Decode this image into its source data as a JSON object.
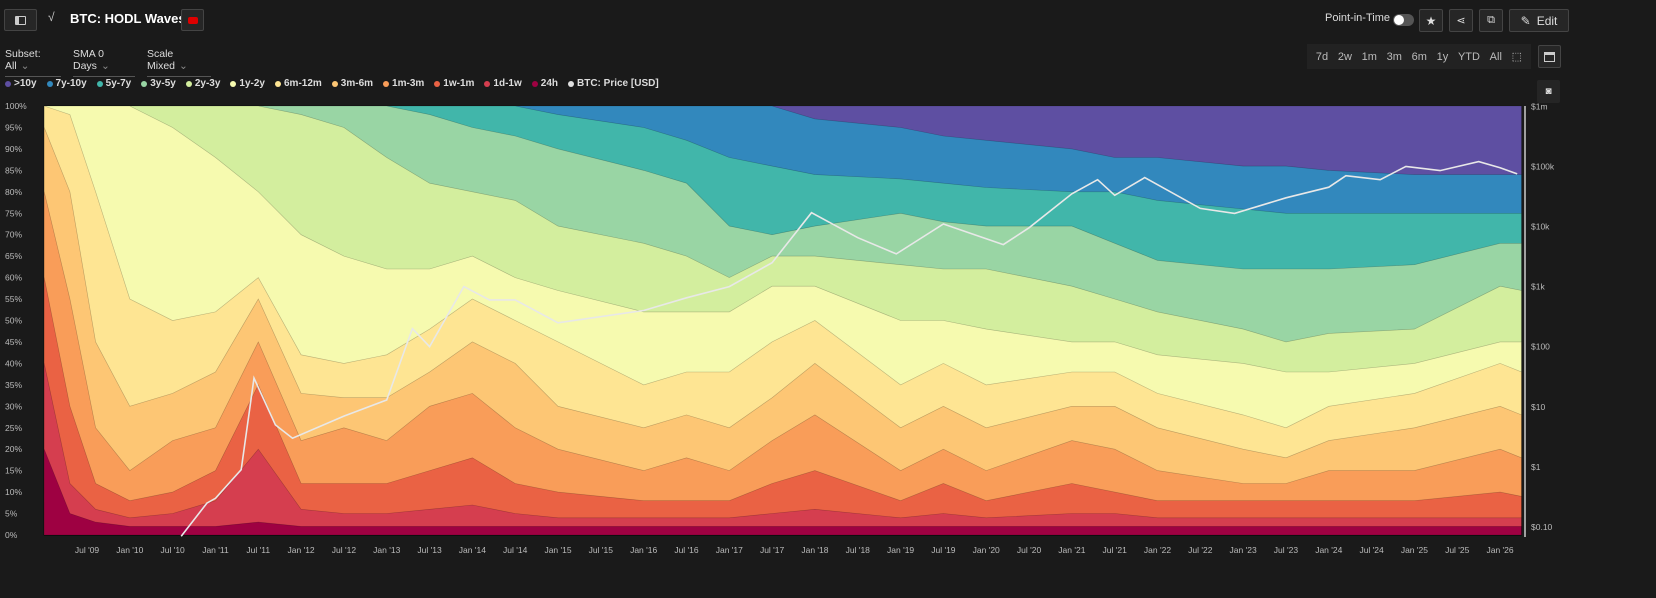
{
  "header": {
    "title": "BTC: HODL Waves",
    "point_in_time": "Point-in-Time",
    "edit": "Edit"
  },
  "controls": {
    "subset": "Subset: All",
    "sma": "SMA 0 Days",
    "scale": "Scale Mixed"
  },
  "ranges": [
    "7d",
    "2w",
    "1m",
    "3m",
    "6m",
    "1y",
    "YTD",
    "All"
  ],
  "chart_data": {
    "type": "area",
    "title": "BTC: HODL Waves",
    "stacked": true,
    "legend": [
      {
        "name": ">10y",
        "color": "#5e4fa2"
      },
      {
        "name": "7y-10y",
        "color": "#3288bd"
      },
      {
        "name": "5y-7y",
        "color": "#41b6aa"
      },
      {
        "name": "3y-5y",
        "color": "#99d5a4"
      },
      {
        "name": "2y-3y",
        "color": "#d3ee9e"
      },
      {
        "name": "1y-2y",
        "color": "#f6faaf"
      },
      {
        "name": "6m-12m",
        "color": "#fee593"
      },
      {
        "name": "3m-6m",
        "color": "#fdc674"
      },
      {
        "name": "1m-3m",
        "color": "#f99d59"
      },
      {
        "name": "1w-1m",
        "color": "#ea6244"
      },
      {
        "name": "1d-1w",
        "color": "#d53e4f"
      },
      {
        "name": "24h",
        "color": "#9e0142"
      },
      {
        "name": "BTC: Price [USD]",
        "color": "#e0e0e0"
      }
    ],
    "band_order_bottom_up": [
      "24h",
      "1d-1w",
      "1w-1m",
      "1m-3m",
      "3m-6m",
      "6m-12m",
      "1y-2y",
      "2y-3y",
      "3y-5y",
      "5y-7y",
      "7y-10y",
      ">10y"
    ],
    "dates": [
      2009.0,
      2009.3,
      2009.6,
      2010.0,
      2010.5,
      2011.0,
      2011.5,
      2012.0,
      2012.5,
      2013.0,
      2013.5,
      2014.0,
      2014.5,
      2015.0,
      2016.0,
      2016.5,
      2017.0,
      2017.5,
      2018.0,
      2019.0,
      2019.5,
      2020.0,
      2021.0,
      2021.5,
      2022.0,
      2023.0,
      2023.5,
      2024.0,
      2025.0,
      2026.0,
      2026.25
    ],
    "cumulative_tops_pct": [
      [
        20,
        40,
        60,
        80,
        95,
        100,
        100,
        100,
        100,
        100,
        100
      ],
      [
        5,
        12,
        30,
        55,
        80,
        98,
        100,
        100,
        100,
        100,
        100
      ],
      [
        3,
        6,
        12,
        25,
        45,
        80,
        100,
        100,
        100,
        100,
        100
      ],
      [
        2,
        4,
        8,
        15,
        30,
        55,
        100,
        100,
        100,
        100,
        100
      ],
      [
        2,
        5,
        10,
        22,
        33,
        50,
        95,
        100,
        100,
        100,
        100
      ],
      [
        2,
        8,
        15,
        25,
        38,
        52,
        88,
        100,
        100,
        100,
        100
      ],
      [
        3,
        20,
        35,
        45,
        55,
        60,
        80,
        100,
        100,
        100,
        100
      ],
      [
        2,
        6,
        12,
        22,
        33,
        42,
        70,
        98,
        100,
        100,
        100
      ],
      [
        2,
        5,
        12,
        25,
        32,
        40,
        65,
        95,
        100,
        100,
        100
      ],
      [
        2,
        5,
        12,
        22,
        32,
        42,
        62,
        88,
        100,
        100,
        100
      ],
      [
        2,
        6,
        15,
        30,
        38,
        48,
        62,
        82,
        98,
        100,
        100
      ],
      [
        2,
        7,
        18,
        33,
        45,
        55,
        65,
        80,
        95,
        100,
        100
      ],
      [
        2,
        5,
        12,
        25,
        40,
        50,
        60,
        78,
        93,
        100,
        100
      ],
      [
        2,
        4,
        10,
        20,
        30,
        45,
        57,
        72,
        90,
        98,
        100
      ],
      [
        2,
        4,
        8,
        15,
        25,
        35,
        52,
        68,
        85,
        95,
        100
      ],
      [
        2,
        4,
        8,
        18,
        28,
        38,
        52,
        65,
        82,
        92,
        100
      ],
      [
        2,
        4,
        8,
        15,
        25,
        38,
        52,
        60,
        72,
        88,
        100
      ],
      [
        2,
        5,
        12,
        22,
        32,
        45,
        58,
        65,
        70,
        86,
        100
      ],
      [
        2,
        6,
        15,
        28,
        40,
        50,
        58,
        65,
        72,
        84,
        97
      ],
      [
        2,
        4,
        8,
        15,
        25,
        35,
        50,
        63,
        75,
        83,
        95
      ],
      [
        2,
        5,
        12,
        20,
        30,
        40,
        50,
        62,
        73,
        82,
        93
      ],
      [
        2,
        4,
        8,
        15,
        25,
        35,
        48,
        62,
        72,
        81,
        92
      ],
      [
        2,
        5,
        12,
        22,
        30,
        38,
        45,
        58,
        72,
        80,
        90
      ],
      [
        2,
        5,
        10,
        20,
        30,
        38,
        45,
        55,
        68,
        80,
        88
      ],
      [
        2,
        4,
        8,
        15,
        25,
        33,
        42,
        52,
        64,
        78,
        88
      ],
      [
        2,
        4,
        8,
        12,
        20,
        28,
        40,
        48,
        62,
        76,
        86
      ],
      [
        2,
        4,
        8,
        12,
        18,
        25,
        38,
        45,
        62,
        75,
        86
      ],
      [
        2,
        4,
        8,
        15,
        22,
        30,
        38,
        47,
        62,
        75,
        85
      ],
      [
        2,
        4,
        8,
        15,
        25,
        33,
        40,
        48,
        63,
        75,
        84
      ],
      [
        2,
        4,
        10,
        20,
        30,
        40,
        45,
        58,
        68,
        75,
        84
      ],
      [
        2,
        4,
        9,
        18,
        28,
        38,
        45,
        57,
        68,
        75,
        84
      ]
    ],
    "price": {
      "name": "BTC: Price [USD]",
      "scale": "log",
      "x": [
        2010.6,
        2010.9,
        2011.0,
        2011.3,
        2011.45,
        2011.7,
        2011.9,
        2012.5,
        2013.0,
        2013.3,
        2013.5,
        2013.9,
        2014.2,
        2014.5,
        2015.0,
        2016.0,
        2016.5,
        2017.0,
        2017.5,
        2017.96,
        2018.5,
        2018.95,
        2019.5,
        2020.2,
        2020.5,
        2021.0,
        2021.3,
        2021.5,
        2021.85,
        2022.5,
        2022.9,
        2023.5,
        2024.0,
        2024.2,
        2024.6,
        2024.9,
        2025.3,
        2025.75,
        2026.0,
        2026.2
      ],
      "y": [
        0.07,
        0.25,
        0.3,
        0.9,
        30,
        5,
        3,
        7,
        13,
        200,
        100,
        1000,
        600,
        600,
        250,
        400,
        650,
        1000,
        2500,
        17000,
        6500,
        3500,
        11000,
        5000,
        9500,
        35000,
        60000,
        33000,
        65000,
        20000,
        16500,
        30000,
        45000,
        70000,
        60000,
        100000,
        85000,
        120000,
        95000,
        75000
      ]
    },
    "xlabels": [
      "Jul '09",
      "Jan '10",
      "Jul '10",
      "Jan '11",
      "Jul '11",
      "Jan '12",
      "Jul '12",
      "Jan '13",
      "Jul '13",
      "Jan '14",
      "Jul '14",
      "Jan '15",
      "Jul '15",
      "Jan '16",
      "Jul '16",
      "Jan '17",
      "Jul '17",
      "Jan '18",
      "Jul '18",
      "Jan '19",
      "Jul '19",
      "Jan '20",
      "Jul '20",
      "Jan '21",
      "Jul '21",
      "Jan '22",
      "Jul '22",
      "Jan '23",
      "Jul '23",
      "Jan '24",
      "Jul '24",
      "Jan '25",
      "Jul '25",
      "Jan '26"
    ],
    "ylabels_left": [
      "0%",
      "5%",
      "10%",
      "15%",
      "20%",
      "25%",
      "30%",
      "35%",
      "40%",
      "45%",
      "50%",
      "55%",
      "60%",
      "65%",
      "70%",
      "75%",
      "80%",
      "85%",
      "90%",
      "95%",
      "100%"
    ],
    "ylabels_right": [
      "$0.10",
      "$1",
      "$10",
      "$100",
      "$1k",
      "$10k",
      "$100k",
      "$1m"
    ],
    "ylim_left": [
      0,
      100
    ],
    "ylim_right": [
      0.1,
      1000000
    ],
    "xlim": [
      2009.0,
      2026.25
    ]
  }
}
